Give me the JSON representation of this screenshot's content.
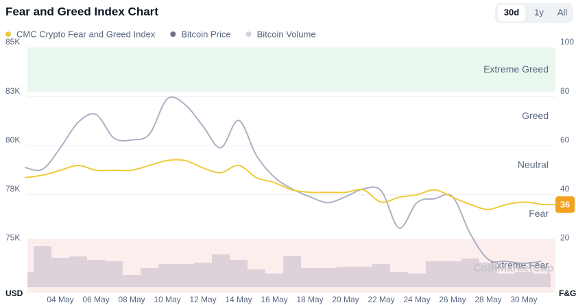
{
  "chart_data": {
    "type": "line",
    "title": "Fear and Greed Index Chart",
    "buttons": [
      "30d",
      "1y",
      "All"
    ],
    "active_button": 0,
    "watermark": "CoinMarketCap",
    "categories": [
      null,
      null,
      "04 May",
      null,
      "06 May",
      null,
      "08 May",
      null,
      "10 May",
      null,
      "12 May",
      null,
      "14 May",
      null,
      "16 May",
      null,
      "18 May",
      null,
      "20 May",
      null,
      "22 May",
      null,
      "24 May",
      null,
      "26 May",
      null,
      "28 May",
      null,
      "30 May",
      null
    ],
    "series": [
      {
        "name": "CMC Crypto Fear and Greed Index",
        "color": "#f0c93a",
        "axis": "y2",
        "values": [
          47,
          48,
          50,
          52,
          50,
          50,
          50,
          52,
          54,
          54,
          51,
          49,
          52,
          47,
          45,
          42,
          41,
          41,
          41,
          42,
          37,
          39,
          40,
          42,
          39,
          36,
          34,
          36,
          37,
          36
        ]
      },
      {
        "name": "Bitcoin Price",
        "color": "#6d7383",
        "line_color": "#abb0c3",
        "values": [
          78900,
          78800,
          79900,
          81200,
          81600,
          80400,
          80300,
          80600,
          82400,
          82100,
          81000,
          79900,
          81300,
          79500,
          78400,
          77800,
          77400,
          77100,
          77400,
          77800,
          77700,
          75800,
          77100,
          77300,
          77400,
          75500,
          74200,
          74100,
          74000,
          74100
        ]
      },
      {
        "name": "Bitcoin Volume",
        "color": "#cfd2df",
        "bar_color": "#d7cdd6",
        "kind": "volume",
        "values": [
          22,
          60,
          43,
          45,
          40,
          38,
          18,
          28,
          34,
          34,
          36,
          48,
          40,
          26,
          20,
          46,
          28,
          28,
          30,
          30,
          34,
          22,
          20,
          38,
          38,
          42,
          36,
          20,
          22,
          20
        ]
      }
    ],
    "ylabel": "USD",
    "y2label": "F&G",
    "ylim": [
      72500,
      85000
    ],
    "yticks": [
      {
        "value": 75000,
        "label": "75K"
      },
      {
        "value": 77500,
        "label": "78K"
      },
      {
        "value": 80000,
        "label": "80K"
      },
      {
        "value": 82500,
        "label": "83K"
      },
      {
        "value": 85000,
        "label": "85K"
      }
    ],
    "y2lim": [
      0,
      100
    ],
    "y2ticks": [
      20,
      40,
      60,
      80,
      100
    ],
    "zones": [
      {
        "label": "Extreme Greed",
        "from": 82,
        "to": 100,
        "color": "#e9f7ef"
      },
      {
        "label": "Greed",
        "from": 62,
        "to": 82
      },
      {
        "label": "Neutral",
        "from": 42,
        "to": 62
      },
      {
        "label": "Fear",
        "from": 22,
        "to": 42
      },
      {
        "label": "Extreme Fear",
        "from": 0,
        "to": 22,
        "color": "#fdeeee"
      }
    ],
    "grid": true,
    "badge_color": "#f0a11f"
  }
}
